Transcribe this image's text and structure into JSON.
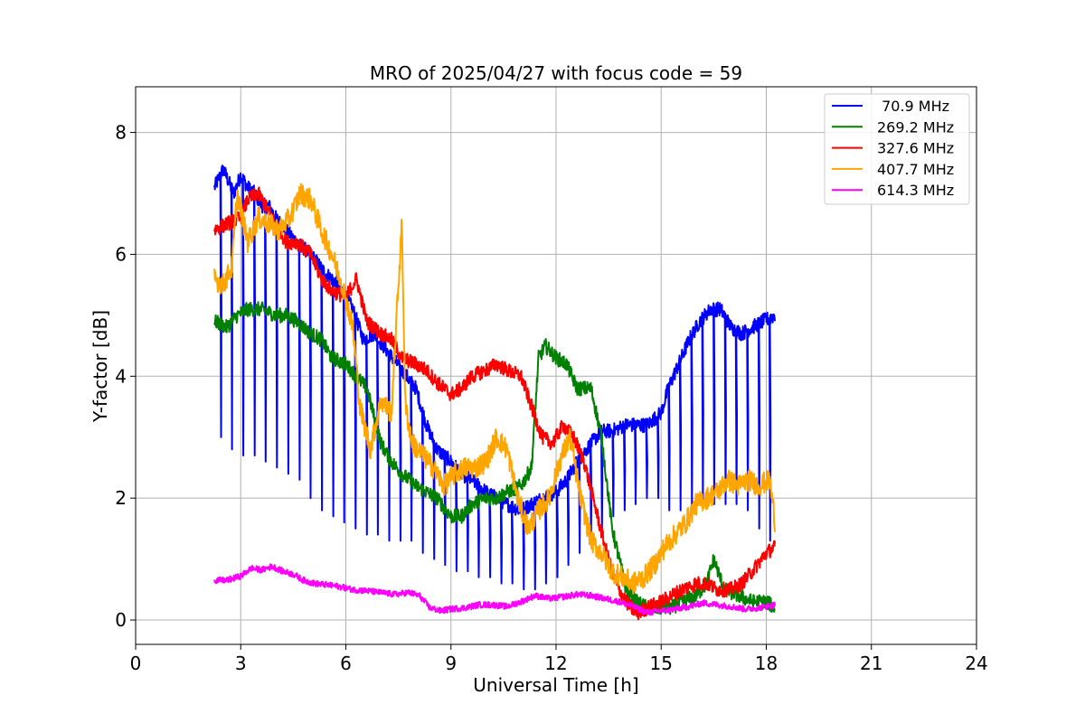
{
  "chart_data": {
    "type": "line",
    "title": "MRO of 2025/04/27 with focus code = 59",
    "xlabel": "Universal Time [h]",
    "ylabel": "Y-factor [dB]",
    "xlim": [
      0,
      24
    ],
    "ylim": [
      -0.4,
      8.75
    ],
    "xticks": [
      0,
      3,
      6,
      9,
      12,
      15,
      18,
      21,
      24
    ],
    "xtick_labels": [
      "0",
      "3",
      "6",
      "9",
      "12",
      "15",
      "18",
      "21",
      "24"
    ],
    "yticks": [
      0,
      2,
      4,
      6,
      8
    ],
    "ytick_labels": [
      "0",
      "2",
      "4",
      "6",
      "8"
    ],
    "grid": true,
    "legend_position": "top-right",
    "series": [
      {
        "name": " 70.9 MHz",
        "color": "#0000ff",
        "dips_periodic": true,
        "x": [
          2.25,
          2.5,
          2.8,
          3.0,
          3.2,
          3.4,
          3.6,
          3.8,
          4.0,
          4.3,
          4.6,
          5.0,
          5.4,
          5.8,
          6.2,
          6.5,
          6.8,
          7.2,
          7.6,
          8.0,
          8.3,
          8.6,
          9.0,
          9.3,
          9.6,
          10.0,
          10.3,
          10.6,
          11.0,
          11.3,
          11.6,
          12.0,
          12.3,
          12.6,
          13.0,
          13.3,
          13.6,
          14.0,
          14.3,
          14.6,
          15.0,
          15.2,
          15.5,
          15.8,
          16.1,
          16.4,
          16.7,
          17.0,
          17.3,
          17.6,
          17.9,
          18.25
        ],
        "y": [
          7.1,
          7.4,
          7.0,
          7.3,
          7.1,
          7.0,
          6.8,
          6.8,
          6.6,
          6.4,
          6.2,
          6.0,
          5.7,
          5.5,
          5.1,
          4.6,
          4.7,
          4.4,
          4.1,
          3.8,
          3.2,
          2.8,
          2.6,
          2.4,
          2.3,
          2.1,
          2.0,
          1.9,
          1.8,
          1.9,
          2.0,
          2.1,
          2.3,
          2.6,
          2.9,
          3.1,
          3.1,
          3.2,
          3.2,
          3.2,
          3.4,
          3.8,
          4.2,
          4.6,
          4.9,
          5.1,
          5.1,
          4.8,
          4.7,
          4.8,
          4.9,
          5.0
        ],
        "dip_levels": [
          3.0,
          2.8,
          2.7,
          2.7,
          2.6,
          2.5,
          2.4,
          2.3,
          2.0,
          1.8,
          1.7,
          1.6,
          1.5,
          1.4,
          1.4,
          1.3,
          1.3,
          1.3,
          1.1,
          1.0,
          0.9,
          0.8,
          0.8,
          0.7,
          0.7,
          0.6,
          0.6,
          0.5,
          0.5,
          0.6,
          0.7,
          0.9,
          1.1,
          1.3,
          1.5,
          1.7,
          1.8,
          1.9,
          2.0,
          2.0,
          1.8,
          1.8,
          1.8,
          1.9,
          1.9,
          1.9,
          1.9,
          1.8,
          1.5,
          1.3
        ]
      },
      {
        "name": "269.2 MHz",
        "color": "#008000",
        "x": [
          2.25,
          2.6,
          2.9,
          3.2,
          3.6,
          4.0,
          4.3,
          4.6,
          5.0,
          5.3,
          5.6,
          6.0,
          6.3,
          6.6,
          7.0,
          7.3,
          7.6,
          8.0,
          8.3,
          8.6,
          9.0,
          9.3,
          9.6,
          10.0,
          10.3,
          10.6,
          11.0,
          11.3,
          11.5,
          11.7,
          12.0,
          12.3,
          12.6,
          13.0,
          13.3,
          13.6,
          14.0,
          14.3,
          14.6,
          15.0,
          15.3,
          15.6,
          16.0,
          16.3,
          16.5,
          16.8,
          17.2,
          17.6,
          18.0,
          18.25
        ],
        "y": [
          4.9,
          4.8,
          5.0,
          5.1,
          5.1,
          5.0,
          5.0,
          4.9,
          4.7,
          4.6,
          4.3,
          4.2,
          4.0,
          3.8,
          2.9,
          2.6,
          2.4,
          2.2,
          2.1,
          2.0,
          1.7,
          1.7,
          1.9,
          2.0,
          2.0,
          2.1,
          2.2,
          2.5,
          4.3,
          4.5,
          4.3,
          4.2,
          3.8,
          3.8,
          3.0,
          1.5,
          0.5,
          0.3,
          0.2,
          0.2,
          0.2,
          0.3,
          0.4,
          0.6,
          1.0,
          0.5,
          0.4,
          0.3,
          0.3,
          0.2
        ]
      },
      {
        "name": "327.6 MHz",
        "color": "#ff0000",
        "x": [
          2.25,
          2.6,
          3.0,
          3.2,
          3.5,
          3.8,
          4.0,
          4.3,
          4.6,
          5.0,
          5.3,
          5.6,
          6.0,
          6.3,
          6.6,
          7.0,
          7.3,
          7.6,
          8.0,
          8.3,
          8.6,
          9.0,
          9.3,
          9.6,
          10.0,
          10.3,
          10.6,
          11.0,
          11.3,
          11.6,
          11.9,
          12.2,
          12.5,
          12.8,
          13.1,
          13.4,
          13.7,
          14.0,
          14.3,
          14.6,
          15.0,
          15.3,
          15.6,
          16.0,
          16.3,
          16.6,
          17.0,
          17.3,
          17.6,
          18.0,
          18.25
        ],
        "y": [
          6.4,
          6.5,
          6.6,
          6.9,
          7.0,
          6.7,
          6.5,
          6.2,
          6.2,
          6.0,
          5.6,
          5.4,
          5.3,
          5.6,
          4.9,
          4.7,
          4.6,
          4.3,
          4.2,
          4.1,
          3.9,
          3.7,
          3.8,
          4.0,
          4.1,
          4.2,
          4.1,
          4.0,
          3.5,
          3.0,
          2.9,
          3.2,
          3.0,
          2.6,
          1.9,
          1.2,
          0.6,
          0.3,
          0.1,
          0.2,
          0.3,
          0.4,
          0.5,
          0.6,
          0.6,
          0.5,
          0.5,
          0.6,
          0.8,
          1.1,
          1.2
        ]
      },
      {
        "name": "407.7 MHz",
        "color": "#ffa500",
        "x": [
          2.25,
          2.5,
          2.75,
          2.9,
          3.2,
          3.5,
          3.8,
          4.1,
          4.4,
          4.7,
          5.0,
          5.3,
          5.6,
          5.9,
          6.2,
          6.4,
          6.7,
          7.0,
          7.3,
          7.5,
          7.6,
          7.7,
          7.9,
          8.2,
          8.5,
          8.8,
          9.1,
          9.4,
          9.7,
          10.0,
          10.3,
          10.6,
          10.9,
          11.2,
          11.5,
          11.8,
          12.1,
          12.4,
          12.7,
          13.0,
          13.3,
          13.6,
          13.9,
          14.2,
          14.5,
          14.8,
          15.1,
          15.4,
          15.7,
          16.0,
          16.3,
          16.6,
          16.9,
          17.2,
          17.5,
          17.8,
          18.1,
          18.25
        ],
        "y": [
          5.6,
          5.5,
          5.8,
          7.0,
          6.2,
          6.6,
          6.5,
          6.4,
          6.6,
          7.0,
          6.9,
          6.4,
          6.0,
          5.5,
          4.8,
          3.5,
          2.8,
          3.6,
          3.4,
          5.5,
          6.5,
          3.5,
          2.9,
          2.7,
          2.5,
          2.2,
          2.4,
          2.5,
          2.5,
          2.6,
          3.0,
          2.8,
          2.0,
          1.5,
          1.8,
          2.0,
          2.6,
          3.0,
          2.0,
          1.3,
          1.1,
          0.8,
          0.7,
          0.6,
          0.7,
          0.9,
          1.2,
          1.4,
          1.6,
          1.9,
          2.0,
          2.1,
          2.3,
          2.2,
          2.3,
          2.2,
          2.3,
          1.6
        ]
      },
      {
        "name": "614.3 MHz",
        "color": "#ff00ff",
        "x": [
          2.25,
          2.6,
          3.0,
          3.3,
          3.6,
          3.9,
          4.2,
          4.5,
          4.8,
          5.1,
          5.4,
          5.8,
          6.2,
          6.6,
          7.0,
          7.4,
          7.8,
          8.1,
          8.4,
          8.7,
          9.0,
          9.4,
          9.8,
          10.2,
          10.6,
          11.0,
          11.4,
          11.8,
          12.2,
          12.6,
          13.0,
          13.4,
          13.8,
          14.2,
          14.6,
          15.0,
          15.4,
          15.8,
          16.2,
          16.6,
          17.0,
          17.4,
          17.8,
          18.25
        ],
        "y": [
          0.65,
          0.65,
          0.72,
          0.85,
          0.82,
          0.88,
          0.8,
          0.75,
          0.65,
          0.6,
          0.58,
          0.55,
          0.5,
          0.48,
          0.45,
          0.42,
          0.45,
          0.4,
          0.2,
          0.15,
          0.18,
          0.2,
          0.25,
          0.25,
          0.22,
          0.3,
          0.4,
          0.35,
          0.38,
          0.42,
          0.4,
          0.35,
          0.3,
          0.22,
          0.12,
          0.15,
          0.18,
          0.22,
          0.28,
          0.25,
          0.22,
          0.18,
          0.2,
          0.25
        ]
      }
    ]
  }
}
